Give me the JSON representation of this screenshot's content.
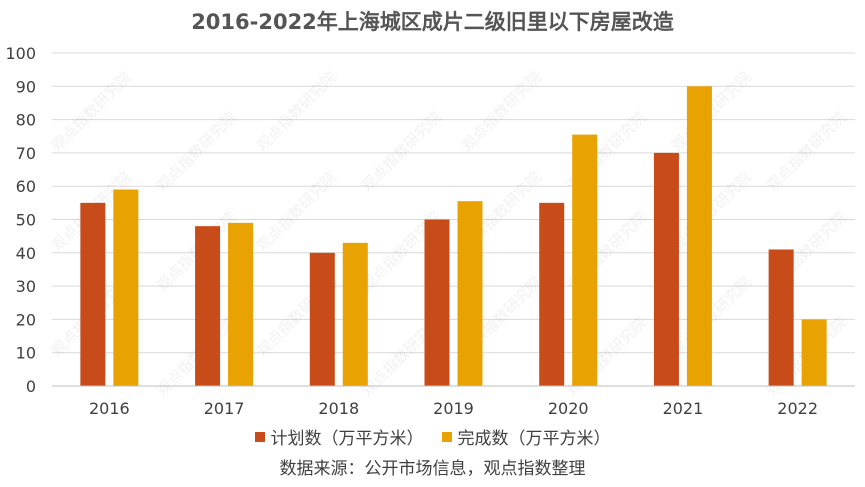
{
  "title": "2016-2022年上海城区成片二级旧里以下房屋改造",
  "source": "数据来源：公开市场信息，观点指数整理",
  "watermark": "观点指数研究院",
  "colors": {
    "plan": "#C84B1A",
    "done": "#E8A201",
    "grid": "#D9D9D9",
    "axis": "#BFBFBF",
    "text": "#404040"
  },
  "chart_data": {
    "type": "bar",
    "title": "2016-2022年上海城区成片二级旧里以下房屋改造",
    "categories": [
      "2016",
      "2017",
      "2018",
      "2019",
      "2020",
      "2021",
      "2022"
    ],
    "series": [
      {
        "name": "计划数（万平方米）",
        "values": [
          55,
          48,
          40,
          50,
          55,
          70,
          41
        ]
      },
      {
        "name": "完成数（万平方米）",
        "values": [
          59,
          49,
          43,
          55.5,
          75.5,
          90,
          20
        ]
      }
    ],
    "ylim": [
      0,
      100
    ],
    "yticks": [
      0,
      10,
      20,
      30,
      40,
      50,
      60,
      70,
      80,
      90,
      100
    ],
    "grid": true,
    "legend_position": "bottom"
  }
}
